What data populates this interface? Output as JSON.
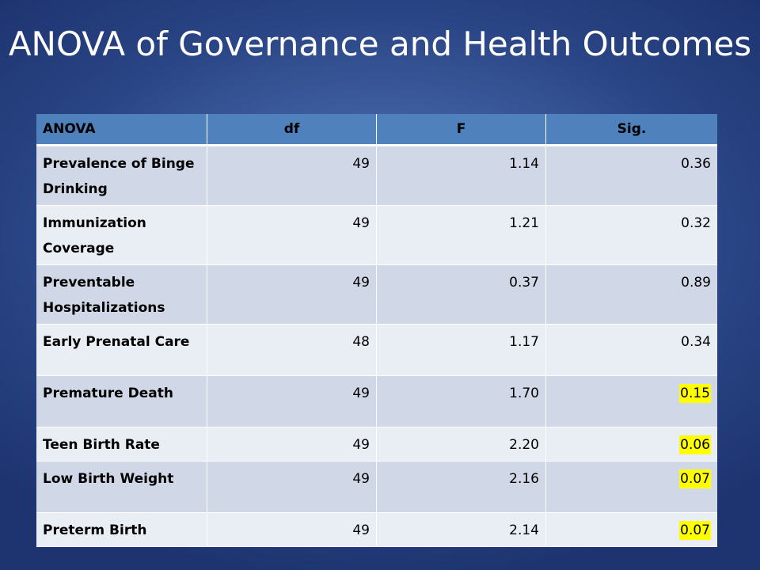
{
  "slide": {
    "title": "ANOVA of Governance and Health Outcomes"
  },
  "table": {
    "headers": [
      "ANOVA",
      "df",
      "F",
      "Sig."
    ],
    "rows": [
      {
        "label": "Prevalence of Binge Drinking",
        "df": "49",
        "f": "1.14",
        "sig": "0.36",
        "highlight": false
      },
      {
        "label": "Immunization Coverage",
        "df": "49",
        "f": "1.21",
        "sig": "0.32",
        "highlight": false
      },
      {
        "label": "Preventable Hospitalizations",
        "df": "49",
        "f": "0.37",
        "sig": "0.89",
        "highlight": false
      },
      {
        "label": "Early Prenatal Care",
        "df": "48",
        "f": "1.17",
        "sig": "0.34",
        "highlight": false
      },
      {
        "label": "Premature Death",
        "df": "49",
        "f": "1.70",
        "sig": "0.15",
        "highlight": true
      },
      {
        "label": "Teen Birth Rate",
        "df": "49",
        "f": "2.20",
        "sig": "0.06",
        "highlight": true
      },
      {
        "label": "Low Birth Weight",
        "df": "49",
        "f": "2.16",
        "sig": "0.07",
        "highlight": true
      },
      {
        "label": "Preterm Birth",
        "df": "49",
        "f": "2.14",
        "sig": "0.07",
        "highlight": true
      }
    ]
  },
  "colors": {
    "header_bg": "#4f81bd",
    "row_odd_bg": "#d0d8e8",
    "row_even_bg": "#e9edf4",
    "highlight": "#ffff00"
  }
}
